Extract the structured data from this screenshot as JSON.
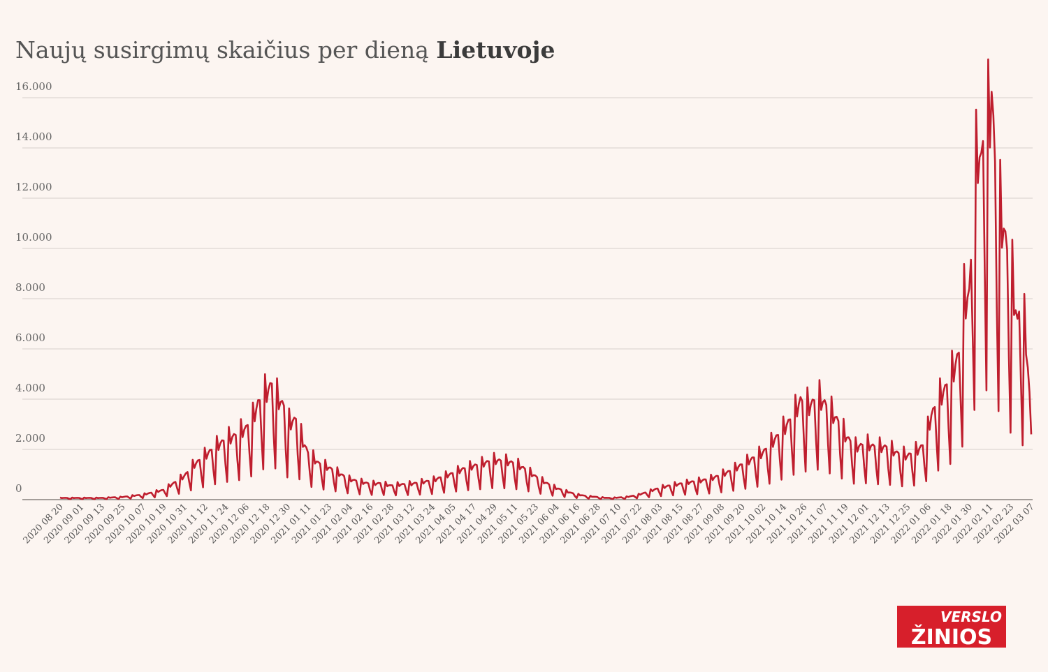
{
  "title": {
    "text": "Naujų susirgimų skaičius per dieną",
    "bold": "Lietuvoje"
  },
  "logo": {
    "top": "VERSLO",
    "bottom": "ŽINIOS"
  },
  "colors": {
    "background": "#fcf5f1",
    "line": "#bf1e2e",
    "grid": "#d6cfcb",
    "logo_bg": "#d71f2b"
  },
  "chart_data": {
    "type": "line",
    "title": "Naujų susirgimų skaičius per dieną Lietuvoje",
    "xlabel": "",
    "ylabel": "",
    "ylim": [
      0,
      16000
    ],
    "y_ticks": [
      {
        "value": 0,
        "label": "0"
      },
      {
        "value": 2000,
        "label": "2.000"
      },
      {
        "value": 4000,
        "label": "4.000"
      },
      {
        "value": 6000,
        "label": "6.000"
      },
      {
        "value": 8000,
        "label": "8.000"
      },
      {
        "value": 10000,
        "label": "10.000"
      },
      {
        "value": 12000,
        "label": "12.000"
      },
      {
        "value": 14000,
        "label": "14.000"
      },
      {
        "value": 16000,
        "label": "16.000"
      }
    ],
    "x_tick_labels": [
      "2020 08 20",
      "2020 09 01",
      "2020 09 13",
      "2020 09 25",
      "2020 10 07",
      "2020 10 19",
      "2020 10 31",
      "2020 11 12",
      "2020 11 24",
      "2020 12 06",
      "2020 12 18",
      "2020 12 30",
      "2021 01 11",
      "2021 01 23",
      "2021 02 04",
      "2021 02 16",
      "2021 02 28",
      "2021 03 12",
      "2021 03 24",
      "2021 04 05",
      "2021 04 17",
      "2021 04 29",
      "2021 05 11",
      "2021 05 23",
      "2021 06 04",
      "2021 06 16",
      "2021 06 28",
      "2021 07 10",
      "2021 07 22",
      "2021 08 03",
      "2021 08 15",
      "2021 08 27",
      "2021 09 08",
      "2021 09 20",
      "2021 10 02",
      "2021 10 14",
      "2021 10 26",
      "2021 11 07",
      "2021 11 19",
      "2021 12 01",
      "2021 12 13",
      "2021 12 25",
      "2022 01 06",
      "2022 01 18",
      "2022 01 30",
      "2022 02 11",
      "2022 02 23",
      "2022 03 07"
    ],
    "grid": true,
    "series": [
      {
        "color": "#bf1e2e",
        "points": [
          [
            "2020 08 20",
            60
          ],
          [
            "2020 09 01",
            60
          ],
          [
            "2020 09 13",
            60
          ],
          [
            "2020 09 25",
            90
          ],
          [
            "2020 10 07",
            170
          ],
          [
            "2020 10 19",
            330
          ],
          [
            "2020 10 31",
            800
          ],
          [
            "2020 11 05",
            1150
          ],
          [
            "2020 11 12",
            1500
          ],
          [
            "2020 11 18",
            1800
          ],
          [
            "2020 11 24",
            2050
          ],
          [
            "2020 11 30",
            2200
          ],
          [
            "2020 12 06",
            2450
          ],
          [
            "2020 12 10",
            2800
          ],
          [
            "2020 12 13",
            3300
          ],
          [
            "2020 12 18",
            3700
          ],
          [
            "2020 12 21",
            3950
          ],
          [
            "2020 12 24",
            3500
          ],
          [
            "2020 12 28",
            3200
          ],
          [
            "2020 12 30",
            2600
          ],
          [
            "2021 01 04",
            2750
          ],
          [
            "2021 01 08",
            2000
          ],
          [
            "2021 01 11",
            1600
          ],
          [
            "2021 01 17",
            1250
          ],
          [
            "2021 01 23",
            1100
          ],
          [
            "2021 01 29",
            900
          ],
          [
            "2021 02 04",
            700
          ],
          [
            "2021 02 10",
            620
          ],
          [
            "2021 02 16",
            540
          ],
          [
            "2021 02 22",
            560
          ],
          [
            "2021 02 28",
            480
          ],
          [
            "2021 03 06",
            520
          ],
          [
            "2021 03 12",
            540
          ],
          [
            "2021 03 18",
            600
          ],
          [
            "2021 03 24",
            650
          ],
          [
            "2021 03 30",
            780
          ],
          [
            "2021 04 05",
            900
          ],
          [
            "2021 04 11",
            1050
          ],
          [
            "2021 04 17",
            1150
          ],
          [
            "2021 04 23",
            1250
          ],
          [
            "2021 04 29",
            1350
          ],
          [
            "2021 05 05",
            1320
          ],
          [
            "2021 05 11",
            1250
          ],
          [
            "2021 05 17",
            1050
          ],
          [
            "2021 05 23",
            800
          ],
          [
            "2021 05 29",
            580
          ],
          [
            "2021 06 04",
            400
          ],
          [
            "2021 06 10",
            280
          ],
          [
            "2021 06 16",
            180
          ],
          [
            "2021 06 22",
            120
          ],
          [
            "2021 06 28",
            90
          ],
          [
            "2021 07 04",
            60
          ],
          [
            "2021 07 10",
            70
          ],
          [
            "2021 07 16",
            100
          ],
          [
            "2021 07 22",
            170
          ],
          [
            "2021 07 28",
            280
          ],
          [
            "2021 08 03",
            400
          ],
          [
            "2021 08 09",
            480
          ],
          [
            "2021 08 15",
            540
          ],
          [
            "2021 08 21",
            600
          ],
          [
            "2021 08 27",
            650
          ],
          [
            "2021 09 02",
            720
          ],
          [
            "2021 09 08",
            850
          ],
          [
            "2021 09 14",
            1000
          ],
          [
            "2021 09 20",
            1200
          ],
          [
            "2021 09 26",
            1400
          ],
          [
            "2021 10 02",
            1600
          ],
          [
            "2021 10 08",
            2000
          ],
          [
            "2021 10 14",
            2400
          ],
          [
            "2021 10 20",
            2900
          ],
          [
            "2021 10 24",
            3400
          ],
          [
            "2021 10 29",
            3200
          ],
          [
            "2021 11 03",
            3500
          ],
          [
            "2021 11 07",
            3300
          ],
          [
            "2021 11 12",
            2900
          ],
          [
            "2021 11 16",
            2600
          ],
          [
            "2021 11 19",
            2200
          ],
          [
            "2021 11 25",
            1800
          ],
          [
            "2021 12 01",
            1900
          ],
          [
            "2021 12 07",
            1800
          ],
          [
            "2021 12 13",
            1800
          ],
          [
            "2021 12 19",
            1600
          ],
          [
            "2021 12 25",
            1500
          ],
          [
            "2021 12 31",
            1700
          ],
          [
            "2022 01 04",
            1900
          ],
          [
            "2022 01 08",
            2900
          ],
          [
            "2022 01 12",
            3400
          ],
          [
            "2022 01 16",
            3800
          ],
          [
            "2022 01 20",
            4300
          ],
          [
            "2022 01 24",
            5000
          ],
          [
            "2022 01 27",
            6800
          ],
          [
            "2022 01 30",
            7000
          ],
          [
            "2022 02 02",
            10500
          ],
          [
            "2022 02 04",
            12000
          ],
          [
            "2022 02 06",
            11500
          ],
          [
            "2022 02 08",
            12900
          ],
          [
            "2022 02 10",
            12700
          ],
          [
            "2022 02 12",
            14000
          ],
          [
            "2022 02 14",
            11500
          ],
          [
            "2022 02 17",
            9800
          ],
          [
            "2022 02 19",
            9300
          ],
          [
            "2022 02 21",
            8500
          ],
          [
            "2022 02 24",
            7500
          ],
          [
            "2022 02 27",
            6000
          ],
          [
            "2022 03 01",
            6800
          ],
          [
            "2022 03 04",
            5500
          ],
          [
            "2022 03 07",
            2600
          ]
        ]
      }
    ]
  }
}
